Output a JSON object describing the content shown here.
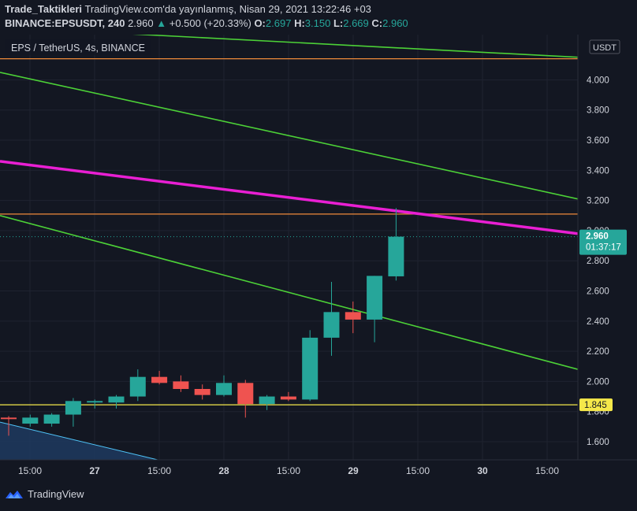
{
  "header": {
    "author": "Trade_Taktikleri",
    "published": "TradingView.com'da yayınlanmış, Nisan 29, 2021 13:22:46 +03",
    "symbol": "BINANCE:EPSUSDT, 240",
    "price": "2.960",
    "change": "+0.500 (+20.33%)",
    "o_label": "O:",
    "o_val": "2.697",
    "h_label": "H:",
    "h_val": "3.150",
    "l_label": "L:",
    "l_val": "2.669",
    "c_label": "C:",
    "c_val": "2.960"
  },
  "legend": {
    "title": "EPS / TetherUS, 4s, BINANCE"
  },
  "currency": "USDT",
  "last_price": {
    "price": "2.960",
    "countdown": "01:37:17"
  },
  "hline_label": "1.845",
  "footer": {
    "brand": "TradingView"
  },
  "colors": {
    "background": "#131722",
    "up": "#26a69a",
    "down": "#ef5350",
    "trend_green": "#4cd137",
    "trend_magenta": "#e91fd3",
    "level_orange": "#f08a3a",
    "level_yellow": "#f5e84a"
  },
  "chart_data": {
    "type": "candlestick",
    "x_ticks": [
      "15:00",
      "27",
      "15:00",
      "28",
      "15:00",
      "29",
      "15:00",
      "30",
      "15:00"
    ],
    "y_ticks": [
      "1.600",
      "1.800",
      "2.000",
      "2.200",
      "2.400",
      "2.600",
      "2.800",
      "3.000",
      "3.200",
      "3.400",
      "3.600",
      "3.800",
      "4.000"
    ],
    "ylim": [
      1.48,
      4.3
    ],
    "candles": [
      {
        "o": 1.76,
        "h": 1.77,
        "l": 1.64,
        "c": 1.75
      },
      {
        "o": 1.72,
        "h": 1.78,
        "l": 1.7,
        "c": 1.76
      },
      {
        "o": 1.72,
        "h": 1.79,
        "l": 1.7,
        "c": 1.78
      },
      {
        "o": 1.78,
        "h": 1.89,
        "l": 1.7,
        "c": 1.87
      },
      {
        "o": 1.86,
        "h": 1.88,
        "l": 1.82,
        "c": 1.87
      },
      {
        "o": 1.86,
        "h": 1.91,
        "l": 1.82,
        "c": 1.9
      },
      {
        "o": 1.9,
        "h": 2.08,
        "l": 1.87,
        "c": 2.03
      },
      {
        "o": 2.03,
        "h": 2.07,
        "l": 1.98,
        "c": 1.99
      },
      {
        "o": 2.0,
        "h": 2.04,
        "l": 1.93,
        "c": 1.95
      },
      {
        "o": 1.95,
        "h": 1.98,
        "l": 1.88,
        "c": 1.91
      },
      {
        "o": 1.91,
        "h": 2.04,
        "l": 1.9,
        "c": 1.99
      },
      {
        "o": 1.99,
        "h": 2.01,
        "l": 1.76,
        "c": 1.85
      },
      {
        "o": 1.85,
        "h": 1.91,
        "l": 1.81,
        "c": 1.9
      },
      {
        "o": 1.9,
        "h": 1.93,
        "l": 1.87,
        "c": 1.88
      },
      {
        "o": 1.88,
        "h": 2.34,
        "l": 1.87,
        "c": 2.29
      },
      {
        "o": 2.29,
        "h": 2.66,
        "l": 2.17,
        "c": 2.46
      },
      {
        "o": 2.46,
        "h": 2.53,
        "l": 2.32,
        "c": 2.41
      },
      {
        "o": 2.41,
        "h": 2.7,
        "l": 2.26,
        "c": 2.7
      },
      {
        "o": 2.697,
        "h": 3.15,
        "l": 2.669,
        "c": 2.96
      }
    ],
    "hlines": [
      {
        "y": 4.14,
        "color": "#f08a3a"
      },
      {
        "y": 3.11,
        "color": "#f08a3a"
      },
      {
        "y": 1.845,
        "color": "#f5e84a"
      }
    ],
    "trendlines": [
      {
        "x0": 0,
        "y0": 4.35,
        "x1": 1,
        "y1": 4.15,
        "color": "#4cd137",
        "width": 1.6
      },
      {
        "x0": 0,
        "y0": 4.05,
        "x1": 1,
        "y1": 3.21,
        "color": "#4cd137",
        "width": 1.6
      },
      {
        "x0": 0,
        "y0": 3.46,
        "x1": 1,
        "y1": 2.98,
        "color": "#e91fd3",
        "width": 3.5
      },
      {
        "x0": 0,
        "y0": 3.1,
        "x1": 1,
        "y1": 2.08,
        "color": "#4cd137",
        "width": 1.6
      }
    ]
  }
}
